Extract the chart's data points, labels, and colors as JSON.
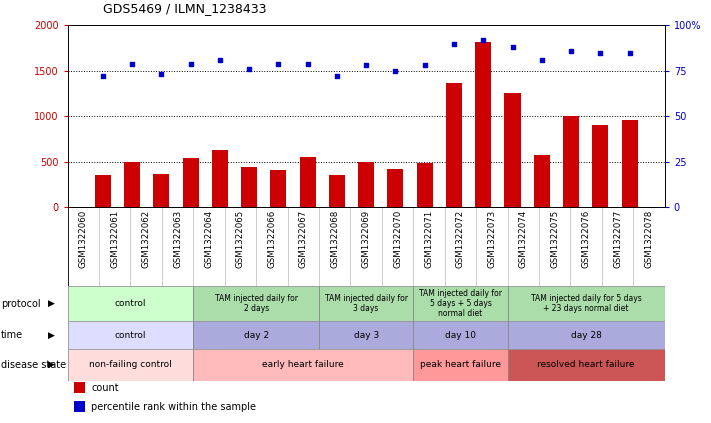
{
  "title": "GDS5469 / ILMN_1238433",
  "samples": [
    "GSM1322060",
    "GSM1322061",
    "GSM1322062",
    "GSM1322063",
    "GSM1322064",
    "GSM1322065",
    "GSM1322066",
    "GSM1322067",
    "GSM1322068",
    "GSM1322069",
    "GSM1322070",
    "GSM1322071",
    "GSM1322072",
    "GSM1322073",
    "GSM1322074",
    "GSM1322075",
    "GSM1322076",
    "GSM1322077",
    "GSM1322078"
  ],
  "counts": [
    350,
    500,
    370,
    540,
    630,
    440,
    405,
    550,
    360,
    500,
    420,
    490,
    1370,
    1820,
    1260,
    580,
    1000,
    910,
    960
  ],
  "percentile": [
    72,
    79,
    73,
    79,
    81,
    76,
    79,
    79,
    72,
    78,
    75,
    78,
    90,
    92,
    88,
    81,
    86,
    85,
    85
  ],
  "bar_color": "#cc0000",
  "dot_color": "#0000cc",
  "ylim_left": [
    0,
    2000
  ],
  "ylim_right": [
    0,
    100
  ],
  "yticks_left": [
    0,
    500,
    1000,
    1500,
    2000
  ],
  "yticks_right": [
    0,
    25,
    50,
    75,
    100
  ],
  "protocol_groups": [
    {
      "label": "control",
      "start": 0,
      "end": 4,
      "color": "#ccffcc"
    },
    {
      "label": "TAM injected daily for\n2 days",
      "start": 4,
      "end": 8,
      "color": "#aaddaa"
    },
    {
      "label": "TAM injected daily for\n3 days",
      "start": 8,
      "end": 11,
      "color": "#aaddaa"
    },
    {
      "label": "TAM injected daily for\n5 days + 5 days\nnormal diet",
      "start": 11,
      "end": 14,
      "color": "#aaddaa"
    },
    {
      "label": "TAM injected daily for 5 days\n+ 23 days normal diet",
      "start": 14,
      "end": 19,
      "color": "#aaddaa"
    }
  ],
  "time_groups": [
    {
      "label": "control",
      "start": 0,
      "end": 4,
      "color": "#ddddff"
    },
    {
      "label": "day 2",
      "start": 4,
      "end": 8,
      "color": "#aaaadd"
    },
    {
      "label": "day 3",
      "start": 8,
      "end": 11,
      "color": "#aaaadd"
    },
    {
      "label": "day 10",
      "start": 11,
      "end": 14,
      "color": "#aaaadd"
    },
    {
      "label": "day 28",
      "start": 14,
      "end": 19,
      "color": "#aaaadd"
    }
  ],
  "disease_groups": [
    {
      "label": "non-failing control",
      "start": 0,
      "end": 4,
      "color": "#ffdddd"
    },
    {
      "label": "early heart failure",
      "start": 4,
      "end": 11,
      "color": "#ffbbbb"
    },
    {
      "label": "peak heart failure",
      "start": 11,
      "end": 14,
      "color": "#ff9999"
    },
    {
      "label": "resolved heart failure",
      "start": 14,
      "end": 19,
      "color": "#cc5555"
    }
  ],
  "row_labels": [
    "protocol",
    "time",
    "disease state"
  ],
  "legend_items": [
    {
      "color": "#cc0000",
      "label": "count"
    },
    {
      "color": "#0000cc",
      "label": "percentile rank within the sample"
    }
  ],
  "background_color": "#ffffff"
}
